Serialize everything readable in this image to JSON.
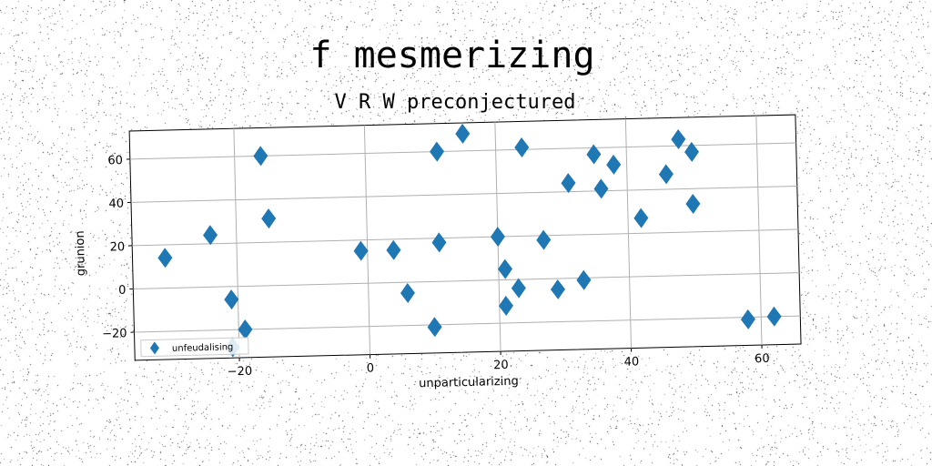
{
  "chart_data": {
    "type": "scatter",
    "title": "f mesmerizing",
    "subtitle": "V R W preconjectured",
    "xlabel": "unparticularizing",
    "ylabel": "grunion",
    "xlim": [
      -36,
      66
    ],
    "ylim": [
      -33,
      73
    ],
    "xticks": [
      -20,
      0,
      20,
      40,
      60
    ],
    "yticks": [
      -20,
      0,
      20,
      40,
      60
    ],
    "xtick_labels": [
      "−20",
      "0",
      "20",
      "40",
      "60"
    ],
    "ytick_labels": [
      "−20",
      "0",
      "20",
      "40",
      "60"
    ],
    "grid": true,
    "legend_position": "lower-left",
    "series": [
      {
        "name": "unfeudalising",
        "marker": "diamond",
        "color": "#1f77b4",
        "points": [
          {
            "x": -31,
            "y": 14
          },
          {
            "x": -24,
            "y": 24
          },
          {
            "x": -21,
            "y": -6
          },
          {
            "x": -21,
            "y": -28
          },
          {
            "x": -19,
            "y": -20
          },
          {
            "x": -16,
            "y": 60
          },
          {
            "x": -15,
            "y": 31
          },
          {
            "x": -1,
            "y": 15
          },
          {
            "x": 4,
            "y": 15
          },
          {
            "x": 6,
            "y": -5
          },
          {
            "x": 10,
            "y": -21
          },
          {
            "x": 11,
            "y": 60
          },
          {
            "x": 11,
            "y": 18
          },
          {
            "x": 15,
            "y": 68
          },
          {
            "x": 20,
            "y": 20
          },
          {
            "x": 21,
            "y": 5
          },
          {
            "x": 21,
            "y": -12
          },
          {
            "x": 23,
            "y": -4
          },
          {
            "x": 24,
            "y": 61
          },
          {
            "x": 27,
            "y": 18
          },
          {
            "x": 29,
            "y": -5
          },
          {
            "x": 31,
            "y": 44
          },
          {
            "x": 33,
            "y": -1
          },
          {
            "x": 35,
            "y": 57
          },
          {
            "x": 36,
            "y": 41
          },
          {
            "x": 38,
            "y": 52
          },
          {
            "x": 42,
            "y": 27
          },
          {
            "x": 46,
            "y": 47
          },
          {
            "x": 48,
            "y": 63
          },
          {
            "x": 50,
            "y": 57
          },
          {
            "x": 50,
            "y": 33
          },
          {
            "x": 58,
            "y": -21
          },
          {
            "x": 62,
            "y": -20
          }
        ]
      }
    ]
  }
}
